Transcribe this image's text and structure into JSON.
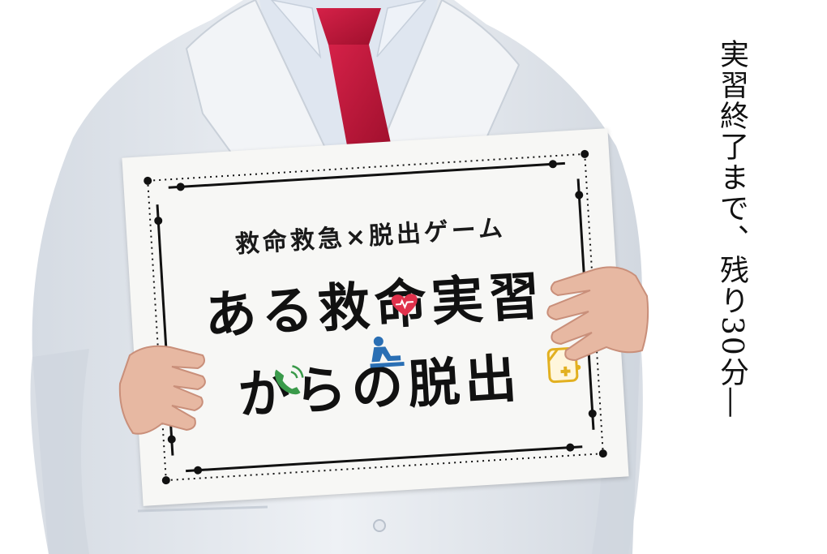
{
  "sign": {
    "subtitle": "救命救急×脱出ゲーム",
    "title_line1": "ある救命実習",
    "title_line2": "からの脱出"
  },
  "caption": "実習終了まで、残り30分―",
  "colors": {
    "coat": "#e9edf2",
    "tie": "#c3163a",
    "heart": "#e0314b",
    "person": "#2a6fb4",
    "phone": "#3a9a4a",
    "ambulance": "#e2b020",
    "frame": "#111111"
  },
  "icons": [
    "heart-icon",
    "person-icon",
    "phone-icon",
    "ambulance-icon"
  ]
}
